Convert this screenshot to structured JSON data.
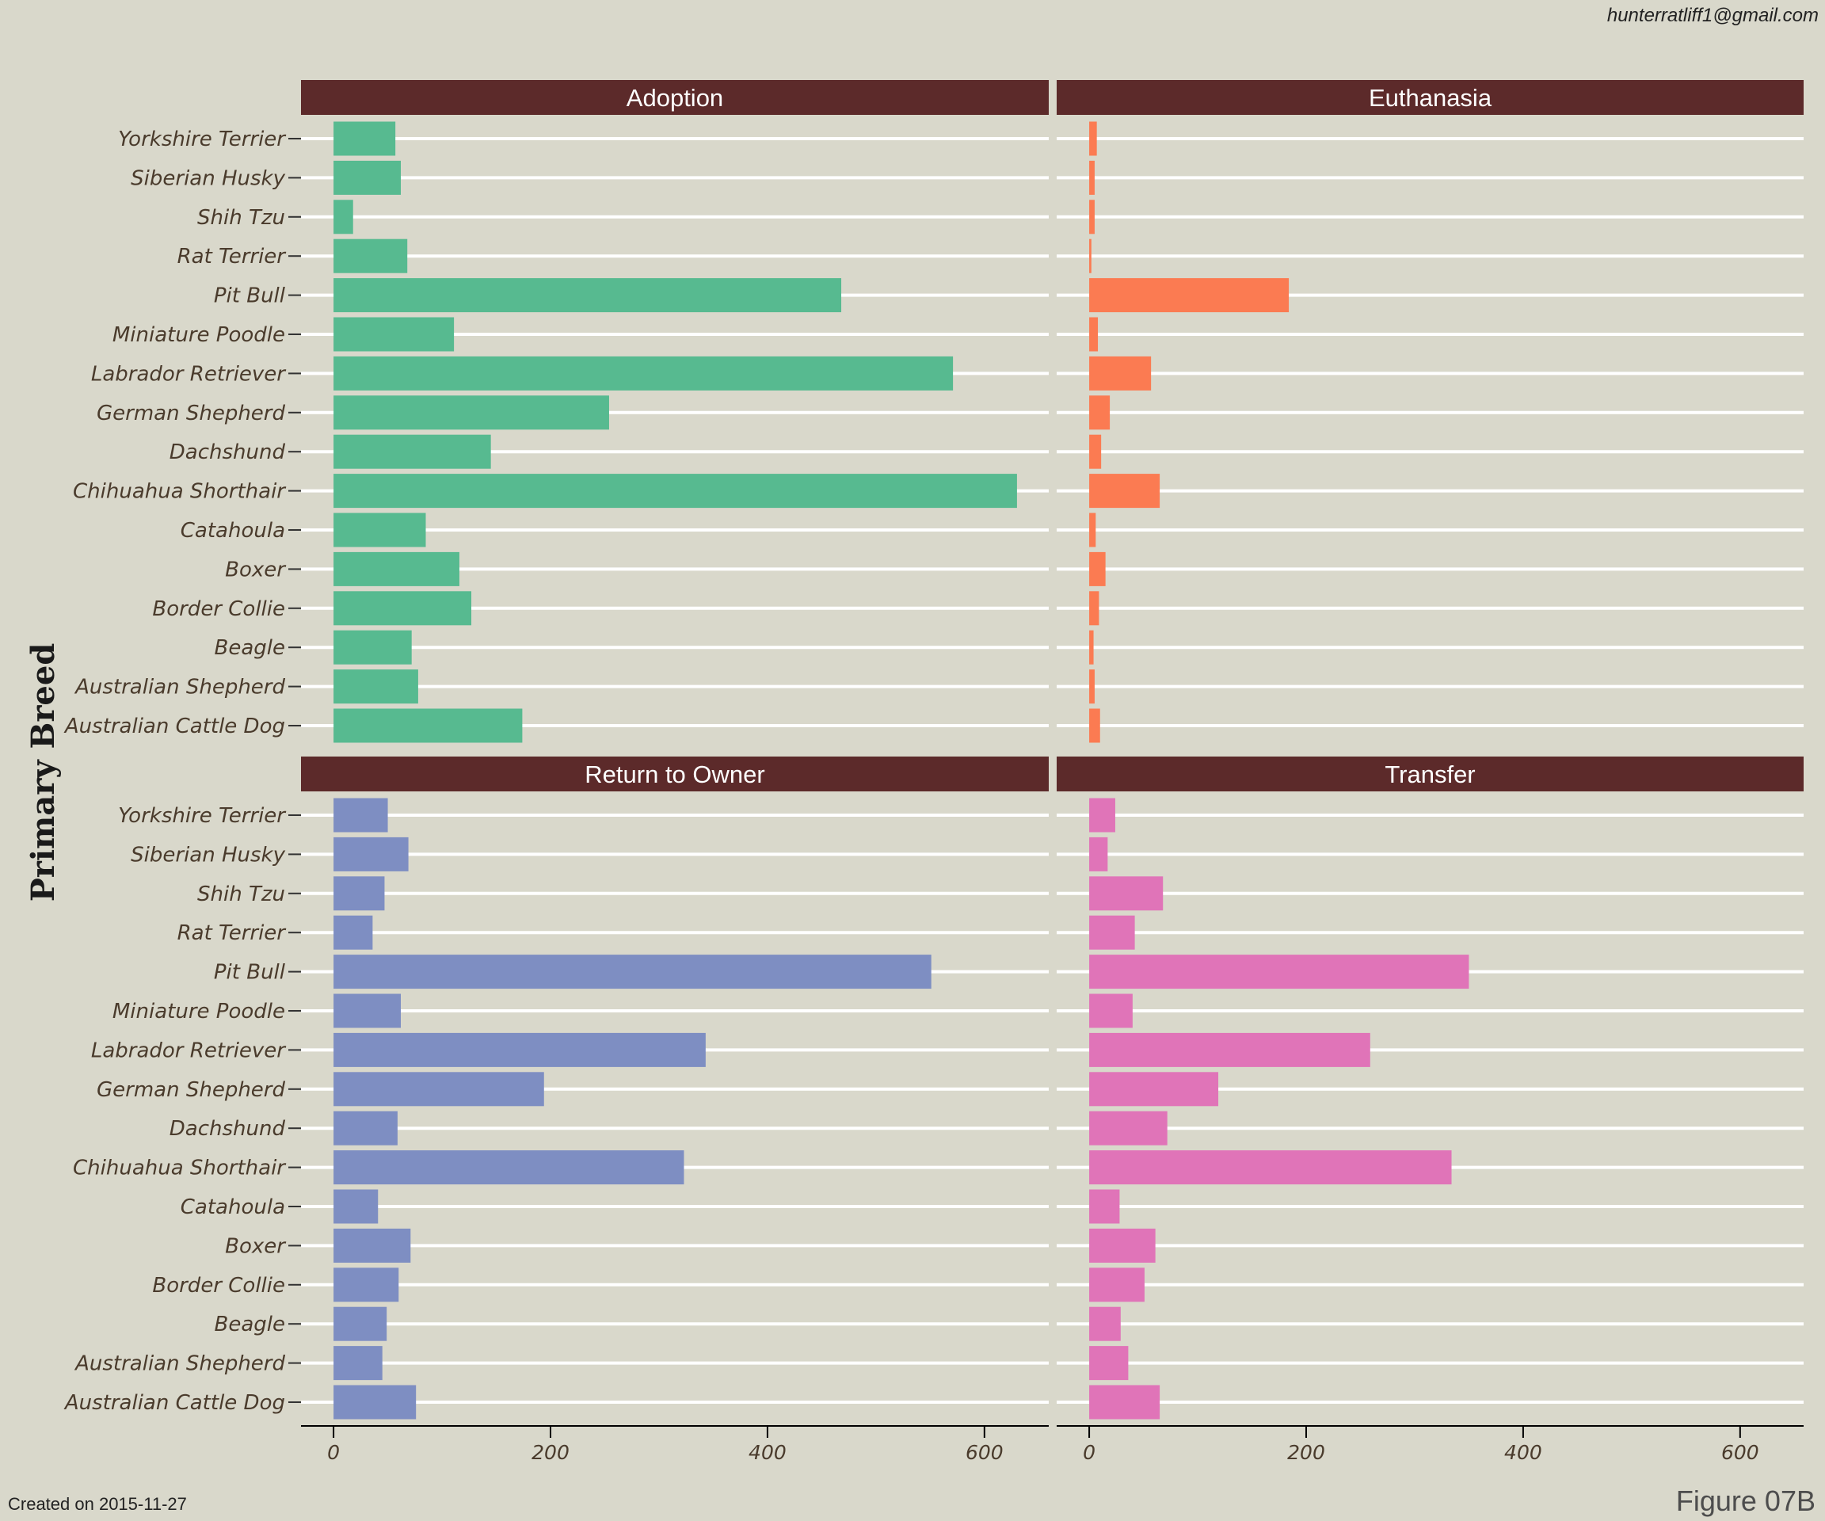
{
  "header": {
    "email": "hunterratliff1@gmail.com"
  },
  "footer": {
    "created": "Created on 2015-11-27",
    "figure_label": "Figure 07B"
  },
  "chart_data": {
    "type": "bar",
    "orientation": "horizontal",
    "faceted": true,
    "ylabel": "Primary Breed",
    "xlabel": "",
    "xlim": [
      -30,
      660
    ],
    "xticks": [
      0,
      200,
      400,
      600
    ],
    "grid": true,
    "legend": "none",
    "categories": [
      "Yorkshire Terrier",
      "Siberian Husky",
      "Shih Tzu",
      "Rat Terrier",
      "Pit Bull",
      "Miniature Poodle",
      "Labrador Retriever",
      "German Shepherd",
      "Dachshund",
      "Chihuahua Shorthair",
      "Catahoula",
      "Boxer",
      "Border Collie",
      "Beagle",
      "Australian Shepherd",
      "Australian Cattle Dog"
    ],
    "panels": [
      {
        "name": "Adoption",
        "color": "#57ba90",
        "values": [
          57,
          62,
          18,
          68,
          468,
          111,
          571,
          254,
          145,
          630,
          85,
          116,
          127,
          72,
          78,
          174
        ]
      },
      {
        "name": "Euthanasia",
        "color": "#fb7b52",
        "values": [
          7,
          5,
          5,
          2,
          184,
          8,
          57,
          19,
          11,
          65,
          6,
          15,
          9,
          4,
          5,
          10
        ]
      },
      {
        "name": "Return to Owner",
        "color": "#7e8ec2",
        "values": [
          50,
          69,
          47,
          36,
          551,
          62,
          343,
          194,
          59,
          323,
          41,
          71,
          60,
          49,
          45,
          76
        ]
      },
      {
        "name": "Transfer",
        "color": "#e074b8",
        "values": [
          24,
          17,
          68,
          42,
          350,
          40,
          259,
          119,
          72,
          334,
          28,
          61,
          51,
          29,
          36,
          65
        ]
      }
    ],
    "colors": {
      "background": "#d9d8cb",
      "strip": "#5c2a2a",
      "gridline": "#ffffff",
      "axis": "#000000"
    }
  }
}
